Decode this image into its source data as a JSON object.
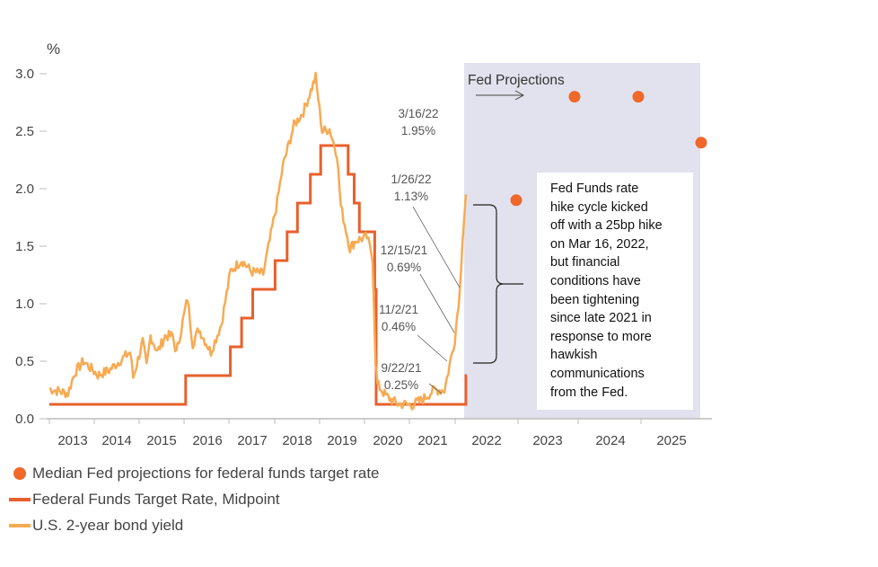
{
  "chart_data": {
    "type": "line",
    "y_unit_label": "%",
    "ylim": [
      0,
      3.0
    ],
    "y_ticks": [
      "0.0",
      "0.5",
      "1.0",
      "1.5",
      "2.0",
      "2.5",
      "3.0"
    ],
    "x_ticks": [
      "2013",
      "2014",
      "2015",
      "2016",
      "2017",
      "2018",
      "2019",
      "2020",
      "2021",
      "2022",
      "2023",
      "2024",
      "2025"
    ],
    "grid": false,
    "legend_placement": "bottom-left",
    "colors": {
      "projections": "#f0682a",
      "fed_funds": "#e8602c",
      "two_year": "#f8aa52",
      "shade": "#e2e2ee"
    },
    "shaded_region_label": "Fed Projections",
    "series": [
      {
        "name": "Federal Funds Target Rate, Midpoint",
        "type": "step",
        "points": [
          [
            "2012-12-01",
            0.125
          ],
          [
            "2015-12-16",
            0.375
          ],
          [
            "2016-12-14",
            0.625
          ],
          [
            "2017-03-15",
            0.875
          ],
          [
            "2017-06-14",
            1.125
          ],
          [
            "2017-12-13",
            1.375
          ],
          [
            "2018-03-21",
            1.625
          ],
          [
            "2018-06-13",
            1.875
          ],
          [
            "2018-09-26",
            2.125
          ],
          [
            "2018-12-19",
            2.375
          ],
          [
            "2019-07-31",
            2.125
          ],
          [
            "2019-09-18",
            1.875
          ],
          [
            "2019-10-30",
            1.625
          ],
          [
            "2020-03-03",
            1.125
          ],
          [
            "2020-03-15",
            0.125
          ],
          [
            "2022-03-16",
            0.375
          ]
        ]
      },
      {
        "name": "U.S. 2-year bond yield",
        "type": "line",
        "points": [
          [
            "2012-12-01",
            0.26
          ],
          [
            "2013-05-01",
            0.22
          ],
          [
            "2013-06-25",
            0.4
          ],
          [
            "2013-09-05",
            0.5
          ],
          [
            "2013-12-31",
            0.38
          ],
          [
            "2014-04-01",
            0.42
          ],
          [
            "2014-07-15",
            0.52
          ],
          [
            "2014-09-20",
            0.58
          ],
          [
            "2014-10-15",
            0.36
          ],
          [
            "2014-12-31",
            0.67
          ],
          [
            "2015-02-01",
            0.45
          ],
          [
            "2015-03-05",
            0.72
          ],
          [
            "2015-05-01",
            0.58
          ],
          [
            "2015-07-01",
            0.72
          ],
          [
            "2015-09-01",
            0.72
          ],
          [
            "2015-10-01",
            0.57
          ],
          [
            "2015-12-31",
            1.05
          ],
          [
            "2016-02-11",
            0.65
          ],
          [
            "2016-04-01",
            0.78
          ],
          [
            "2016-07-08",
            0.58
          ],
          [
            "2016-10-01",
            0.82
          ],
          [
            "2016-12-15",
            1.28
          ],
          [
            "2017-03-15",
            1.38
          ],
          [
            "2017-06-01",
            1.28
          ],
          [
            "2017-09-08",
            1.26
          ],
          [
            "2017-12-31",
            1.89
          ],
          [
            "2018-02-15",
            2.2
          ],
          [
            "2018-05-15",
            2.55
          ],
          [
            "2018-08-01",
            2.67
          ],
          [
            "2018-11-08",
            2.97
          ],
          [
            "2018-12-31",
            2.5
          ],
          [
            "2019-03-01",
            2.52
          ],
          [
            "2019-05-01",
            2.3
          ],
          [
            "2019-06-01",
            1.85
          ],
          [
            "2019-08-15",
            1.48
          ],
          [
            "2019-10-01",
            1.55
          ],
          [
            "2019-12-31",
            1.58
          ],
          [
            "2020-02-15",
            1.4
          ],
          [
            "2020-03-10",
            0.5
          ],
          [
            "2020-03-25",
            0.3
          ],
          [
            "2020-06-01",
            0.2
          ],
          [
            "2020-09-01",
            0.13
          ],
          [
            "2021-01-01",
            0.12
          ],
          [
            "2021-04-01",
            0.17
          ],
          [
            "2021-06-30",
            0.25
          ],
          [
            "2021-09-22",
            0.25
          ],
          [
            "2021-11-02",
            0.46
          ],
          [
            "2021-12-15",
            0.69
          ],
          [
            "2022-01-26",
            1.13
          ],
          [
            "2022-02-15",
            1.55
          ],
          [
            "2022-03-16",
            1.95
          ]
        ]
      },
      {
        "name": "Median Fed projections for federal funds target rate",
        "type": "scatter",
        "points": [
          [
            "2022-12-31",
            1.9
          ],
          [
            "2023-12-31",
            2.8
          ],
          [
            "2024-12-31",
            2.8
          ],
          [
            "2025-12-31",
            2.4
          ]
        ]
      }
    ],
    "annotations": [
      {
        "date": "3/16/22",
        "value": "1.95%"
      },
      {
        "date": "1/26/22",
        "value": "1.13%"
      },
      {
        "date": "12/15/21",
        "value": "0.69%"
      },
      {
        "date": "11/2/21",
        "value": "0.46%"
      },
      {
        "date": "9/22/21",
        "value": "0.25%"
      }
    ],
    "note": [
      "Fed Funds rate",
      "hike cycle kicked",
      "off with a 25bp hike",
      "on Mar 16, 2022,",
      "but financial",
      "conditions have",
      "been tightening",
      "since late 2021 in",
      "response to more",
      "hawkish",
      "communications",
      "from the Fed."
    ]
  },
  "legend": [
    {
      "label": "Median Fed projections for federal funds target rate",
      "symbol": "dot"
    },
    {
      "label": "Federal Funds Target Rate, Midpoint",
      "symbol": "line1"
    },
    {
      "label": "U.S. 2-year bond yield",
      "symbol": "line2"
    }
  ]
}
